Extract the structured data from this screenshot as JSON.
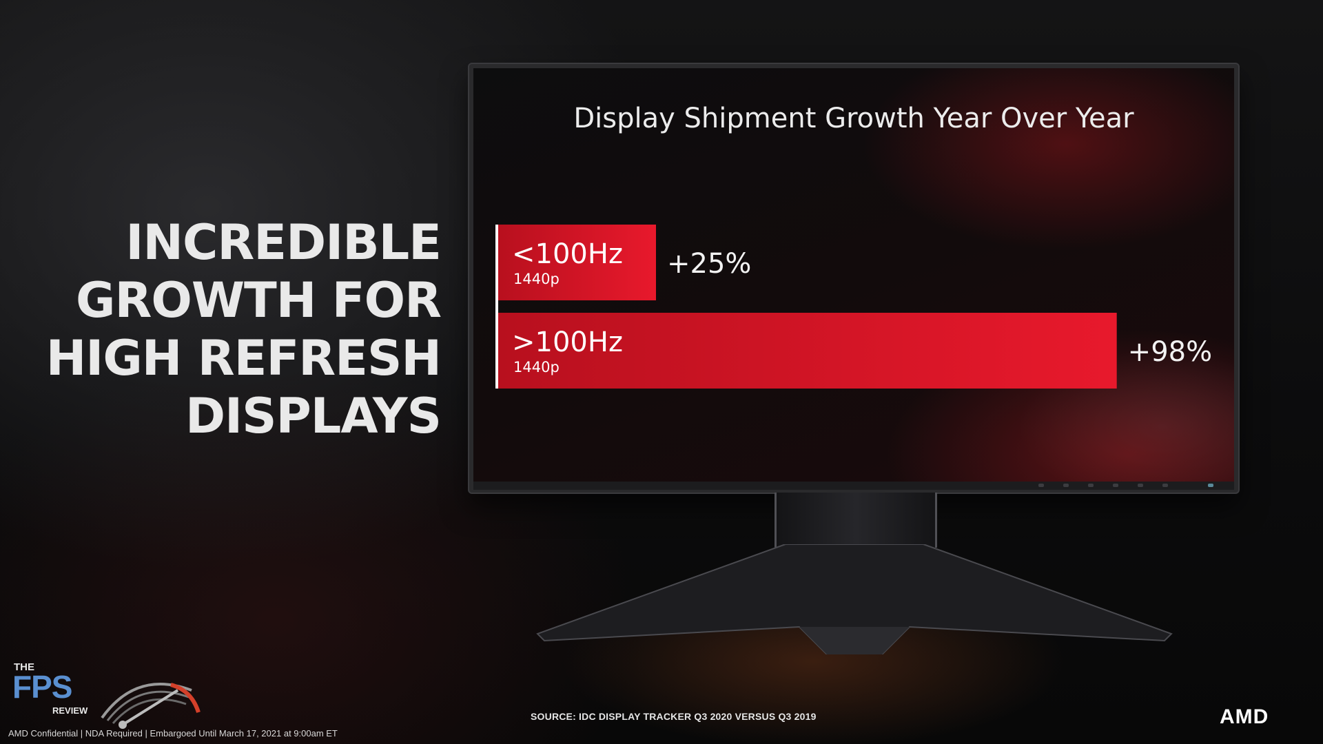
{
  "headline": [
    "INCREDIBLE",
    "GROWTH FOR",
    "HIGH REFRESH",
    "DISPLAYS"
  ],
  "chart_data": {
    "type": "bar",
    "orientation": "horizontal",
    "title": "Display Shipment Growth Year Over Year",
    "categories": [
      {
        "label": "<100Hz",
        "sublabel": "1440p"
      },
      {
        "label": ">100Hz",
        "sublabel": "1440p"
      }
    ],
    "values": [
      25,
      98
    ],
    "value_labels": [
      "+25%",
      "+98%"
    ],
    "unit": "%",
    "xlim": [
      0,
      100
    ],
    "bar_color": "#e8192c",
    "grid": false
  },
  "source": "SOURCE: IDC DISPLAY TRACKER Q3 2020 VERSUS Q3 2019",
  "footer": "AMD Confidential  |  NDA Required  |  Embargoed Until March 17, 2021 at 9:00am ET",
  "watermark": {
    "the": "THE",
    "name": "FPS",
    "sub": "REVIEW"
  },
  "brand": "AMD"
}
